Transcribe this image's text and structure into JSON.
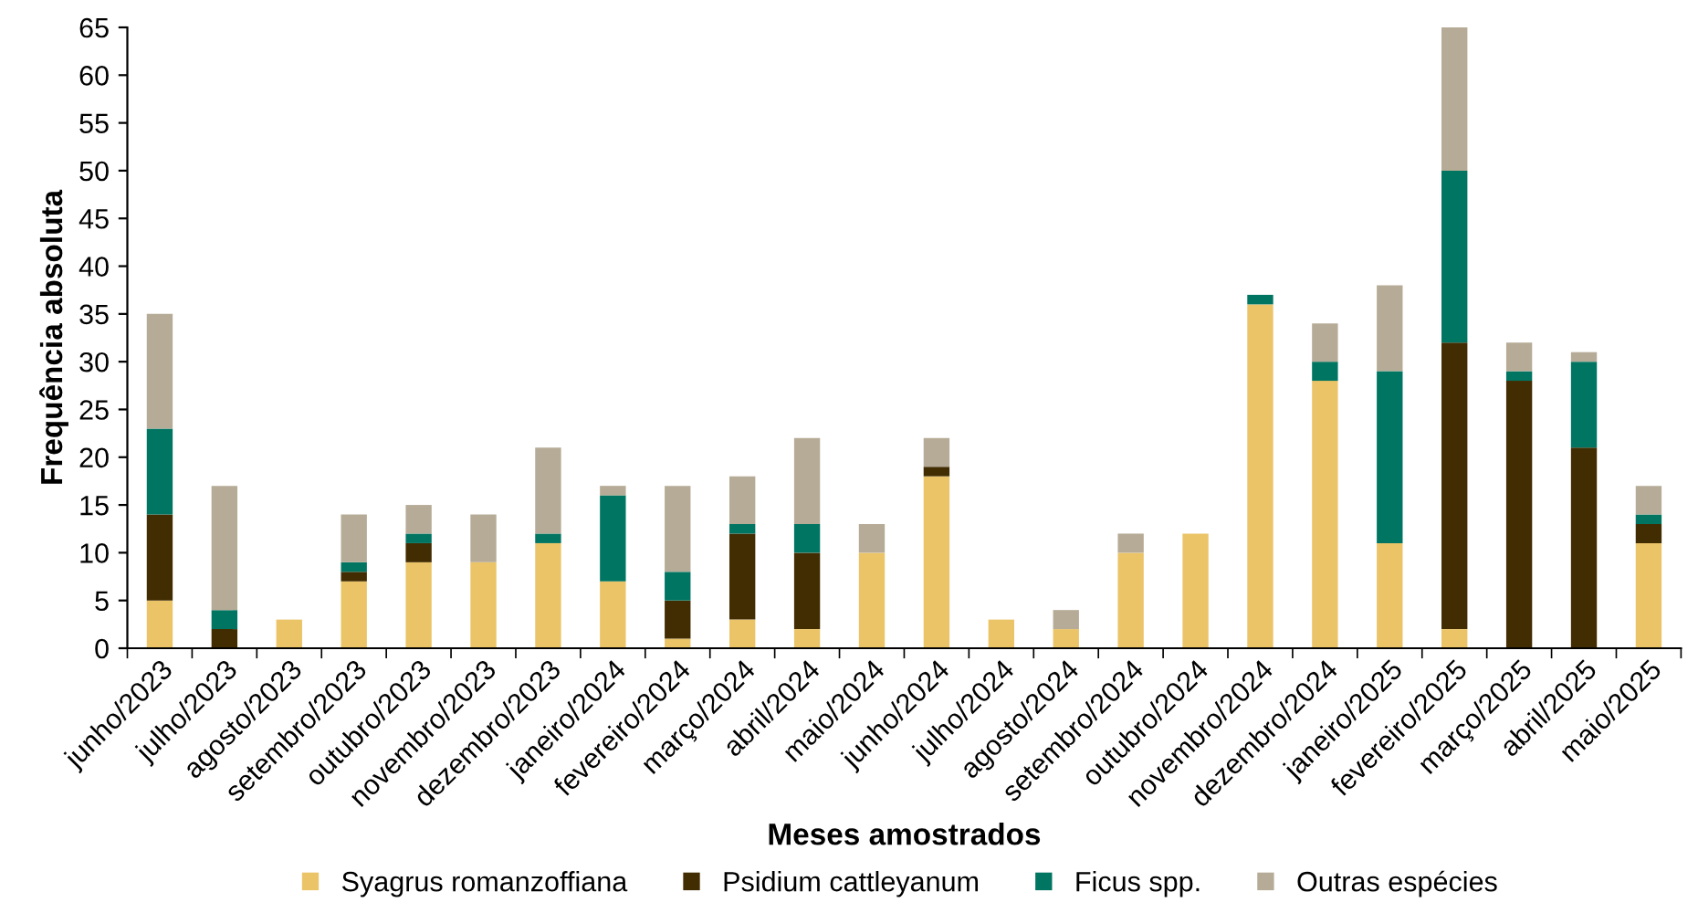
{
  "chart_data": {
    "type": "bar",
    "stacked": true,
    "xlabel": "Meses amostrados",
    "ylabel": "Frequência absoluta",
    "categories": [
      "junho/2023",
      "julho/2023",
      "agosto/2023",
      "setembro/2023",
      "outubro/2023",
      "novembro/2023",
      "dezembro/2023",
      "janeiro/2024",
      "fevereiro/2024",
      "março/2024",
      "abril/2024",
      "maio/2024",
      "junho/2024",
      "julho/2024",
      "agosto/2024",
      "setembro/2024",
      "outubro/2024",
      "novembro/2024",
      "dezembro/2024",
      "janeiro/2025",
      "fevereiro/2025",
      "março/2025",
      "abril/2025",
      "maio/2025"
    ],
    "series": [
      {
        "name": "Syagrus romanzoffiana",
        "color": "#ebc468",
        "values": [
          5,
          0,
          3,
          7,
          9,
          9,
          11,
          7,
          1,
          3,
          2,
          10,
          18,
          3,
          2,
          10,
          12,
          36,
          28,
          11,
          2,
          0,
          0,
          11
        ]
      },
      {
        "name": "Psidium cattleyanum",
        "color": "#422d02",
        "values": [
          9,
          2,
          0,
          1,
          2,
          0,
          0,
          0,
          4,
          9,
          8,
          0,
          1,
          0,
          0,
          0,
          0,
          0,
          0,
          0,
          30,
          28,
          21,
          2
        ]
      },
      {
        "name": "Ficus spp.",
        "color": "#007562",
        "values": [
          9,
          2,
          0,
          1,
          1,
          0,
          1,
          9,
          3,
          1,
          3,
          0,
          0,
          0,
          0,
          0,
          0,
          1,
          2,
          18,
          18,
          1,
          9,
          1
        ]
      },
      {
        "name": "Outras espécies",
        "color": "#b6ab96",
        "values": [
          12,
          13,
          0,
          5,
          3,
          5,
          9,
          1,
          9,
          5,
          9,
          3,
          3,
          0,
          2,
          2,
          0,
          0,
          4,
          9,
          15,
          3,
          1,
          3
        ]
      }
    ],
    "ylim": [
      0,
      65
    ],
    "yticks": [
      0,
      5,
      10,
      15,
      20,
      25,
      30,
      35,
      40,
      45,
      50,
      55,
      60,
      65
    ],
    "grid": false,
    "legend": "bottom"
  }
}
